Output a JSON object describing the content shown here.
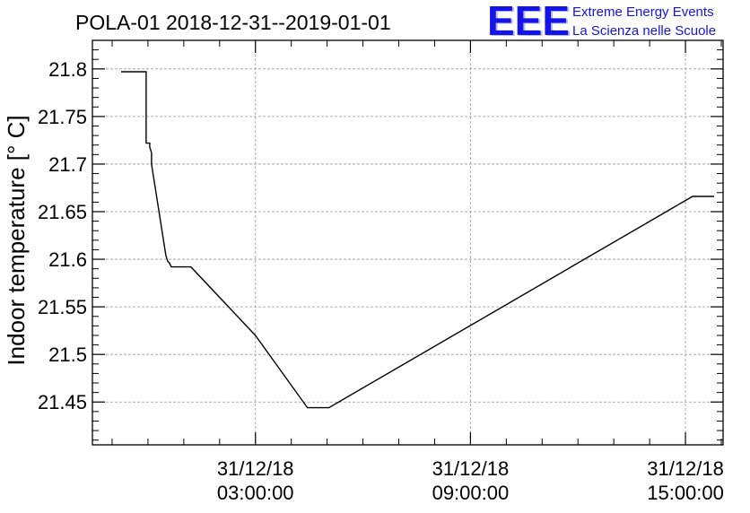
{
  "chart_data": {
    "type": "line",
    "title": "POLA-01 2018-12-31--2019-01-01",
    "xlabel": "",
    "ylabel": "Indoor temperature [° C]",
    "ylim": [
      21.405,
      21.83
    ],
    "xlim_hours": [
      -1.55,
      16.05
    ],
    "x_ticks": [
      {
        "hour": 3,
        "label_date": "31/12/18",
        "label_time": "03:00:00"
      },
      {
        "hour": 9,
        "label_date": "31/12/18",
        "label_time": "09:00:00"
      },
      {
        "hour": 15,
        "label_date": "31/12/18",
        "label_time": "15:00:00"
      }
    ],
    "y_ticks": [
      21.45,
      21.5,
      21.55,
      21.6,
      21.65,
      21.7,
      21.75,
      21.8
    ],
    "y_tick_labels": [
      "21.45",
      "21.5",
      "21.55",
      "21.6",
      "21.65",
      "21.7",
      "21.75",
      "21.8"
    ],
    "grid": true,
    "series": [
      {
        "color": "#000000",
        "x": [
          -0.75,
          -0.05,
          -0.05,
          0.05,
          0.05,
          0.1,
          0.1,
          0.15,
          0.2,
          0.25,
          0.3,
          0.35,
          0.4,
          0.45,
          0.5,
          0.55,
          0.6,
          0.65,
          0.65,
          1.2,
          3.0,
          4.45,
          5.05,
          15.2,
          15.8
        ],
        "y": [
          21.797,
          21.797,
          21.722,
          21.722,
          21.718,
          21.712,
          21.7,
          21.688,
          21.676,
          21.664,
          21.652,
          21.64,
          21.628,
          21.616,
          21.604,
          21.598,
          21.596,
          21.592,
          21.592,
          21.592,
          21.52,
          21.444,
          21.444,
          21.666,
          21.666
        ]
      }
    ]
  },
  "logo": {
    "letters": "EEE",
    "line1": "Extreme Energy Events",
    "line2": "La Scienza nelle Scuole",
    "color": "#1414e6"
  }
}
